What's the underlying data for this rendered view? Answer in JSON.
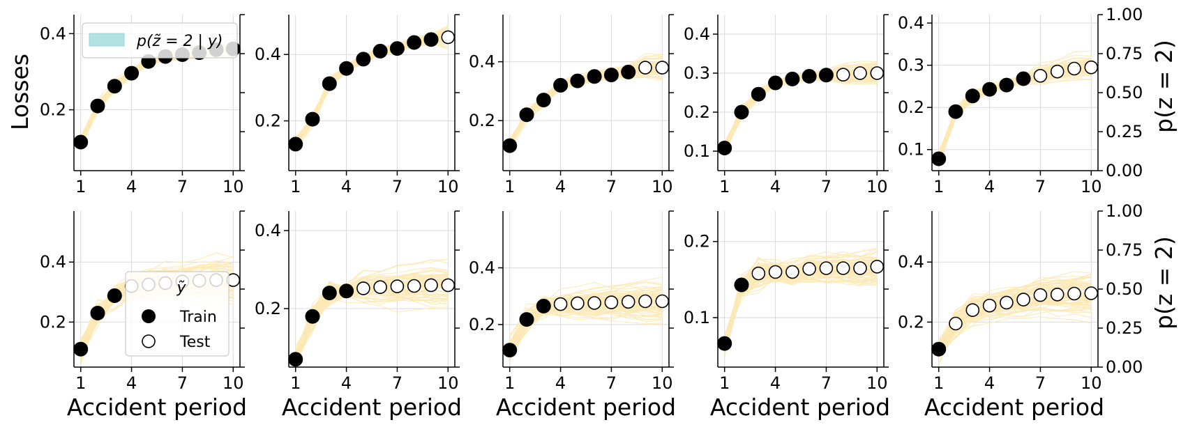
{
  "figure": {
    "y_label": "Losses",
    "right_label": "p(z = 2)",
    "x_label": "Accident period"
  },
  "legend": {
    "band_label": "p(z̃ = 2 | y)",
    "y_label": "ỹ",
    "train_label": "Train",
    "test_label": "Test"
  },
  "colors": {
    "paths": "#fde9b5",
    "band": "#b2e2e2",
    "train": "#000000",
    "test_fill": "#ffffff",
    "grid": "#d9d9d9"
  },
  "chart_data": [
    {
      "type": "scatter",
      "row": 0,
      "col": 0,
      "x": [
        1,
        2,
        3,
        4,
        5,
        6,
        7,
        8,
        9,
        10
      ],
      "y": [
        0.115,
        0.21,
        0.262,
        0.296,
        0.327,
        0.34,
        0.345,
        0.35,
        0.358,
        0.36
      ],
      "train_n": 10,
      "yticks": [
        0.2,
        0.4
      ],
      "ylim": [
        0.04,
        0.45
      ],
      "xticks": [
        1,
        4,
        7,
        10
      ],
      "xlim": [
        0.6,
        10.4
      ]
    },
    {
      "type": "scatter",
      "row": 0,
      "col": 1,
      "x": [
        1,
        2,
        3,
        4,
        5,
        6,
        7,
        8,
        9,
        10
      ],
      "y": [
        0.13,
        0.205,
        0.312,
        0.358,
        0.386,
        0.41,
        0.418,
        0.436,
        0.445,
        0.452
      ],
      "train_n": 9,
      "yticks": [
        0.2,
        0.4
      ],
      "ylim": [
        0.05,
        0.52
      ],
      "xticks": [
        1,
        4,
        7,
        10
      ],
      "xlim": [
        0.6,
        10.4
      ]
    },
    {
      "type": "scatter",
      "row": 0,
      "col": 2,
      "x": [
        1,
        2,
        3,
        4,
        5,
        6,
        7,
        8,
        9,
        10
      ],
      "y": [
        0.115,
        0.22,
        0.27,
        0.32,
        0.335,
        0.35,
        0.355,
        0.365,
        0.38,
        0.38
      ],
      "train_n": 8,
      "yticks": [
        0.2,
        0.4
      ],
      "ylim": [
        0.03,
        0.56
      ],
      "xticks": [
        1,
        4,
        7,
        10
      ],
      "xlim": [
        0.6,
        10.4
      ]
    },
    {
      "type": "scatter",
      "row": 0,
      "col": 3,
      "x": [
        1,
        2,
        3,
        4,
        5,
        6,
        7,
        8,
        9,
        10
      ],
      "y": [
        0.108,
        0.2,
        0.246,
        0.275,
        0.285,
        0.292,
        0.295,
        0.296,
        0.3,
        0.3
      ],
      "train_n": 7,
      "yticks": [
        0.1,
        0.2,
        0.3,
        0.4
      ],
      "ylim": [
        0.05,
        0.45
      ],
      "xticks": [
        1,
        4,
        7,
        10
      ],
      "xlim": [
        0.6,
        10.4
      ]
    },
    {
      "type": "scatter",
      "row": 0,
      "col": 4,
      "x": [
        1,
        2,
        3,
        4,
        5,
        6,
        7,
        8,
        9,
        10
      ],
      "y": [
        0.078,
        0.19,
        0.227,
        0.243,
        0.253,
        0.268,
        0.275,
        0.285,
        0.292,
        0.295
      ],
      "train_n": 6,
      "yticks": [
        0.1,
        0.2,
        0.3,
        0.4
      ],
      "ylim": [
        0.05,
        0.42
      ],
      "xticks": [
        1,
        4,
        7,
        10
      ],
      "xlim": [
        0.6,
        10.4
      ],
      "right_ticks": [
        "0.00",
        "0.25",
        "0.50",
        "0.75",
        "1.00"
      ]
    },
    {
      "type": "scatter",
      "row": 1,
      "col": 0,
      "x": [
        1,
        2,
        3,
        4,
        5,
        6,
        7,
        8,
        9,
        10
      ],
      "y": [
        0.11,
        0.23,
        0.288,
        0.32,
        0.325,
        0.33,
        0.335,
        0.338,
        0.34,
        0.34
      ],
      "train_n": 3,
      "yticks": [
        0.2,
        0.4
      ],
      "ylim": [
        0.05,
        0.57
      ],
      "xticks": [
        1,
        4,
        7,
        10
      ],
      "xlim": [
        0.6,
        10.4
      ]
    },
    {
      "type": "scatter",
      "row": 1,
      "col": 1,
      "x": [
        1,
        2,
        3,
        4,
        5,
        6,
        7,
        8,
        9,
        10
      ],
      "y": [
        0.07,
        0.18,
        0.24,
        0.245,
        0.252,
        0.255,
        0.257,
        0.258,
        0.26,
        0.26
      ],
      "train_n": 4,
      "yticks": [
        0.2,
        0.4
      ],
      "ylim": [
        0.05,
        0.45
      ],
      "xticks": [
        1,
        4,
        7,
        10
      ],
      "xlim": [
        0.6,
        10.4
      ]
    },
    {
      "type": "scatter",
      "row": 1,
      "col": 2,
      "x": [
        1,
        2,
        3,
        4,
        5,
        6,
        7,
        8,
        9,
        10
      ],
      "y": [
        0.11,
        0.218,
        0.265,
        0.272,
        0.275,
        0.276,
        0.278,
        0.28,
        0.282,
        0.282
      ],
      "train_n": 3,
      "yticks": [
        0.2,
        0.4
      ],
      "ylim": [
        0.05,
        0.6
      ],
      "xticks": [
        1,
        4,
        7,
        10
      ],
      "xlim": [
        0.6,
        10.4
      ]
    },
    {
      "type": "scatter",
      "row": 1,
      "col": 3,
      "x": [
        1,
        2,
        3,
        4,
        5,
        6,
        7,
        8,
        9,
        10
      ],
      "y": [
        0.066,
        0.143,
        0.158,
        0.16,
        0.16,
        0.164,
        0.165,
        0.165,
        0.165,
        0.167
      ],
      "train_n": 2,
      "yticks": [
        0.1,
        0.2
      ],
      "ylim": [
        0.035,
        0.24
      ],
      "xticks": [
        1,
        4,
        7,
        10
      ],
      "xlim": [
        0.6,
        10.4
      ]
    },
    {
      "type": "scatter",
      "row": 1,
      "col": 4,
      "x": [
        1,
        2,
        3,
        4,
        5,
        6,
        7,
        8,
        9,
        10
      ],
      "y": [
        0.11,
        0.195,
        0.24,
        0.255,
        0.265,
        0.275,
        0.29,
        0.292,
        0.295,
        0.296
      ],
      "train_n": 1,
      "yticks": [
        0.2,
        0.4
      ],
      "ylim": [
        0.05,
        0.57
      ],
      "xticks": [
        1,
        4,
        7,
        10
      ],
      "xlim": [
        0.6,
        10.4
      ],
      "right_ticks": [
        "0.00",
        "0.25",
        "0.50",
        "0.75",
        "1.00"
      ]
    }
  ]
}
